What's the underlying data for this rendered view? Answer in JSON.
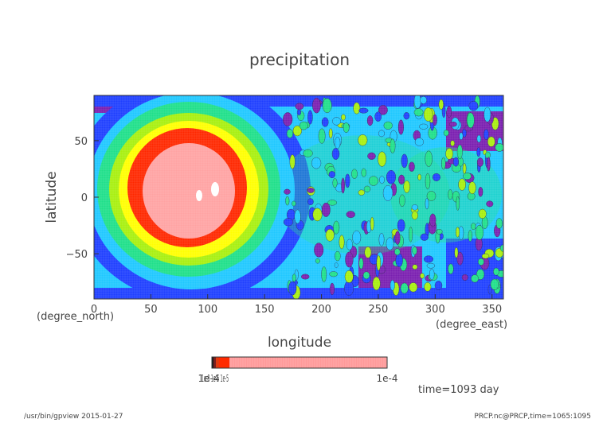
{
  "chart_data": {
    "type": "heatmap",
    "title": "precipitation",
    "xlabel": "longitude",
    "ylabel": "latitude",
    "x_unit": "(degree_east)",
    "y_unit": "(degree_north)",
    "xlim": [
      0,
      360
    ],
    "ylim": [
      -90,
      90
    ],
    "x_ticks": [
      "0",
      "50",
      "100",
      "150",
      "200",
      "250",
      "300",
      "350"
    ],
    "y_ticks": [
      "50",
      "0",
      "−50"
    ],
    "grid": false,
    "colorbar": {
      "label_left": "1e-4",
      "labels_left_overlap": [
        "1e-8",
        "1e-6",
        "1e-5"
      ],
      "label_right": "1e-4",
      "colors": [
        "#1a1a1a",
        "#7a1f1f",
        "#e03a10",
        "#ff2a00",
        "#ff9a9a"
      ]
    },
    "annotation": "time=1093 day",
    "colors": [
      "#7a1fb0",
      "#1f3fff",
      "#1fc8ff",
      "#1fe08a",
      "#a8f010",
      "#ffff00",
      "#ff2800",
      "#ffa3a3"
    ]
  },
  "footer": {
    "left": "/usr/bin/gpview  2015-01-27",
    "right": "PRCP.nc@PRCP,time=1065:1095"
  }
}
